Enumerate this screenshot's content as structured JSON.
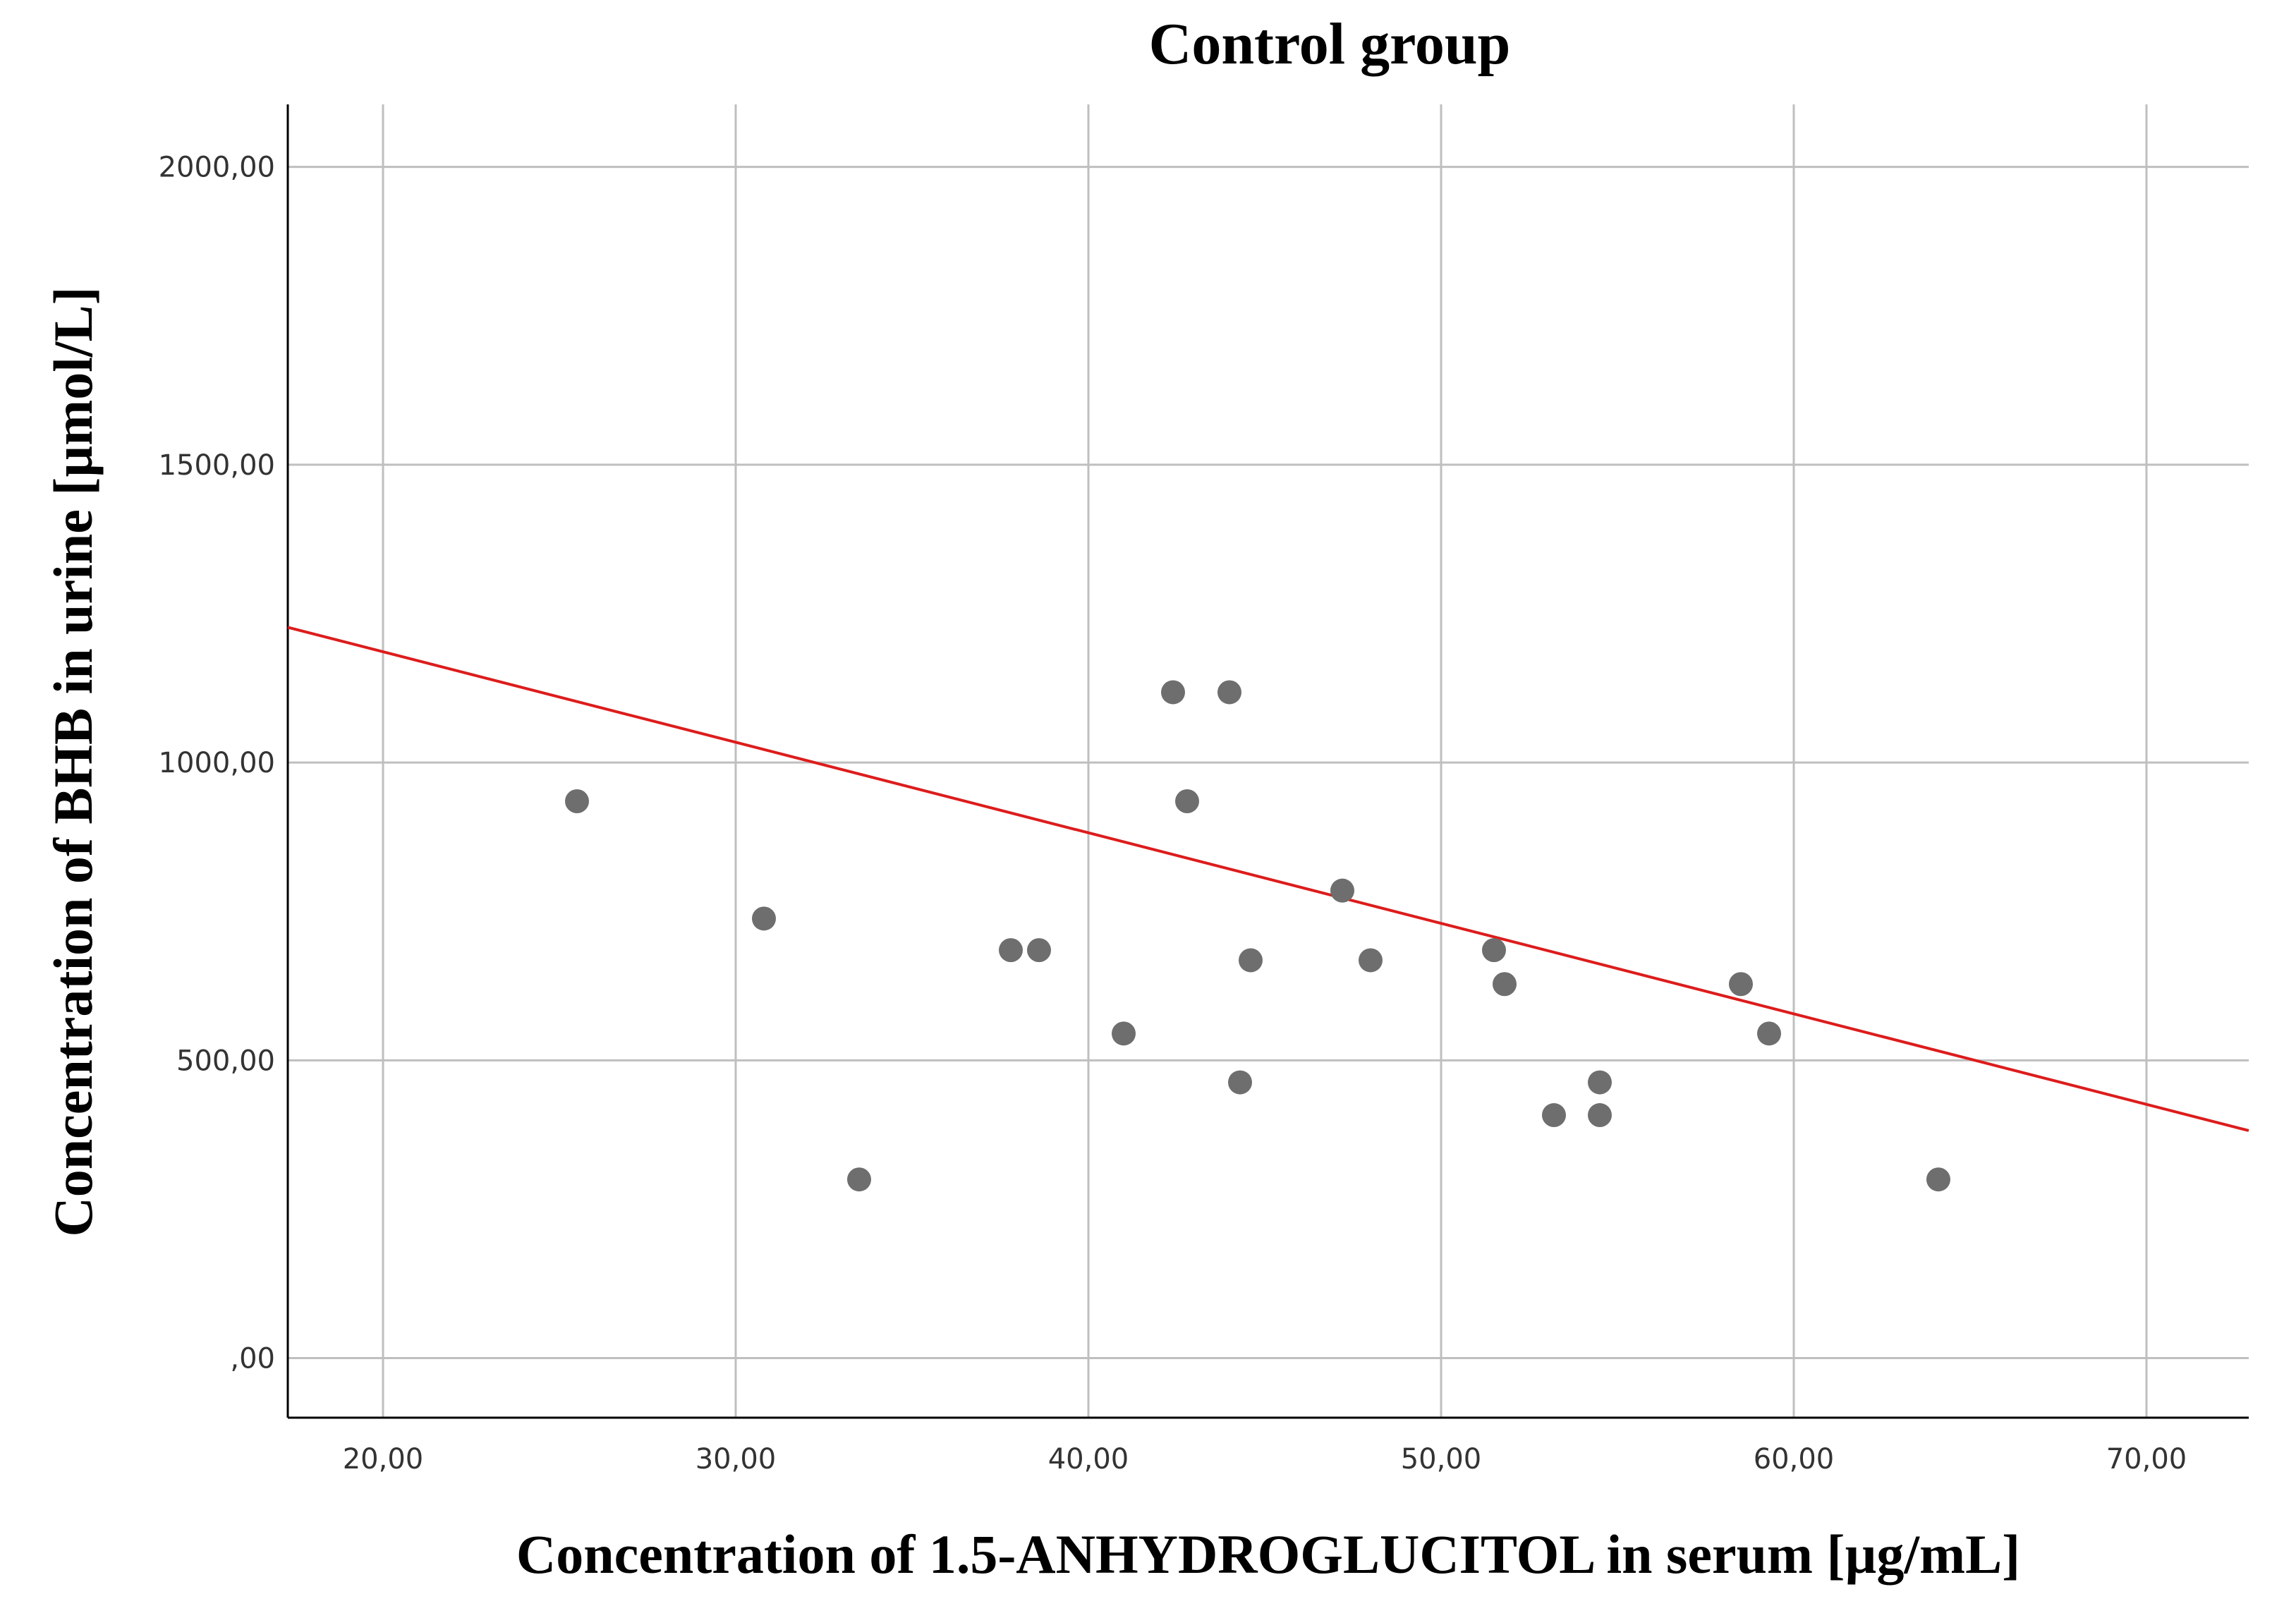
{
  "chart_data": {
    "type": "scatter",
    "title": "Control group",
    "xlabel": "Concentration of 1.5-ANHYDROGLUCITOL in serum [µg/mL]",
    "ylabel": "Concentration of BHB in urine [µmol/L]",
    "xlim": [
      17.3,
      72.9
    ],
    "ylim": [
      -100,
      2105
    ],
    "xticks": [
      20,
      30,
      40,
      50,
      60,
      70
    ],
    "xtick_labels": [
      "20,00",
      "30,00",
      "40,00",
      "50,00",
      "60,00",
      "70,00"
    ],
    "yticks": [
      0,
      500,
      1000,
      1500,
      2000
    ],
    "ytick_labels": [
      ",00",
      "500,00",
      "1000,00",
      "1500,00",
      "2000,00"
    ],
    "grid": true,
    "points": [
      {
        "x": 25.5,
        "y": 935
      },
      {
        "x": 30.8,
        "y": 738
      },
      {
        "x": 33.5,
        "y": 300
      },
      {
        "x": 37.8,
        "y": 685
      },
      {
        "x": 38.6,
        "y": 685
      },
      {
        "x": 41.0,
        "y": 545
      },
      {
        "x": 42.4,
        "y": 1118
      },
      {
        "x": 42.8,
        "y": 935
      },
      {
        "x": 44.0,
        "y": 1118
      },
      {
        "x": 44.3,
        "y": 463
      },
      {
        "x": 44.6,
        "y": 668
      },
      {
        "x": 47.2,
        "y": 785
      },
      {
        "x": 48.0,
        "y": 668
      },
      {
        "x": 51.5,
        "y": 685
      },
      {
        "x": 51.8,
        "y": 628
      },
      {
        "x": 53.2,
        "y": 408
      },
      {
        "x": 54.5,
        "y": 463
      },
      {
        "x": 54.5,
        "y": 408
      },
      {
        "x": 58.5,
        "y": 628
      },
      {
        "x": 59.3,
        "y": 545
      },
      {
        "x": 64.1,
        "y": 300
      }
    ],
    "fit_line": {
      "x": [
        17.3,
        72.9
      ],
      "y": [
        1227,
        382
      ]
    },
    "colors": {
      "points": "#6e6e6e",
      "fit_line": "#dd1c1c",
      "grid": "#bfbfbf",
      "axis": "#000000"
    }
  }
}
